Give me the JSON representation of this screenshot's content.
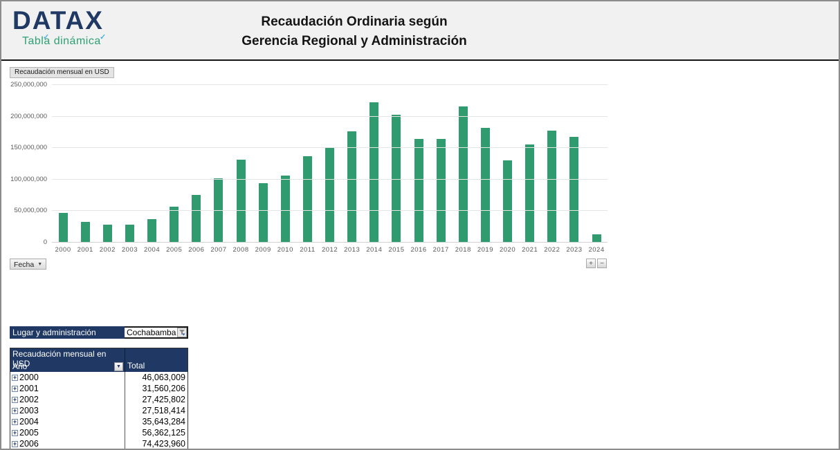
{
  "header": {
    "logo_title": "DATAX",
    "logo_subtitle": "Tabla dinámica",
    "title_line1": "Recaudación Ordinaria según",
    "title_line2": "Gerencia Regional y Administración"
  },
  "chart": {
    "field_button_label": "Recaudación mensual en USD",
    "axis_field_button_label": "Fecha",
    "expand_button_label": "+",
    "collapse_button_label": "−",
    "bar_color": "#2F9B6E"
  },
  "chart_data": {
    "type": "bar",
    "title": "Recaudación mensual en USD",
    "xlabel": "Fecha",
    "ylabel": "",
    "categories": [
      "2000",
      "2001",
      "2002",
      "2003",
      "2004",
      "2005",
      "2006",
      "2007",
      "2008",
      "2009",
      "2010",
      "2011",
      "2012",
      "2013",
      "2014",
      "2015",
      "2016",
      "2017",
      "2018",
      "2019",
      "2020",
      "2021",
      "2022",
      "2023",
      "2024"
    ],
    "values": [
      46063009,
      31560206,
      27425802,
      27518414,
      35643284,
      56362125,
      74423960,
      100500000,
      130000000,
      93500000,
      105500000,
      135500000,
      150000000,
      175000000,
      222000000,
      202000000,
      163500000,
      163500000,
      215000000,
      181000000,
      129000000,
      154500000,
      176000000,
      166500000,
      12500000
    ],
    "ylim": [
      0,
      250000000
    ],
    "ytick_step": 50000000,
    "grid": true,
    "legend": false
  },
  "filter": {
    "label": "Lugar y administración",
    "value": "Cochabamba"
  },
  "pivot_table": {
    "title": "Recaudación mensual en USD",
    "row_header": "Año",
    "value_header": "Total",
    "rows": [
      {
        "year": "2000",
        "total": "46,063,009"
      },
      {
        "year": "2001",
        "total": "31,560,206"
      },
      {
        "year": "2002",
        "total": "27,425,802"
      },
      {
        "year": "2003",
        "total": "27,518,414"
      },
      {
        "year": "2004",
        "total": "35,643,284"
      },
      {
        "year": "2005",
        "total": "56,362,125"
      },
      {
        "year": "2006",
        "total": "74,423,960"
      }
    ]
  },
  "icons": {
    "chevron_down": "▼",
    "expand_plus": "+",
    "filter_funnel": "funnel-with-arrow"
  },
  "colors": {
    "navy_header": "#1F3864",
    "bar_green": "#2F9B6E",
    "logo_navy": "#1F3864",
    "logo_green": "#2FA076",
    "header_band": "#F1F1F2",
    "axis_text": "#595959"
  }
}
